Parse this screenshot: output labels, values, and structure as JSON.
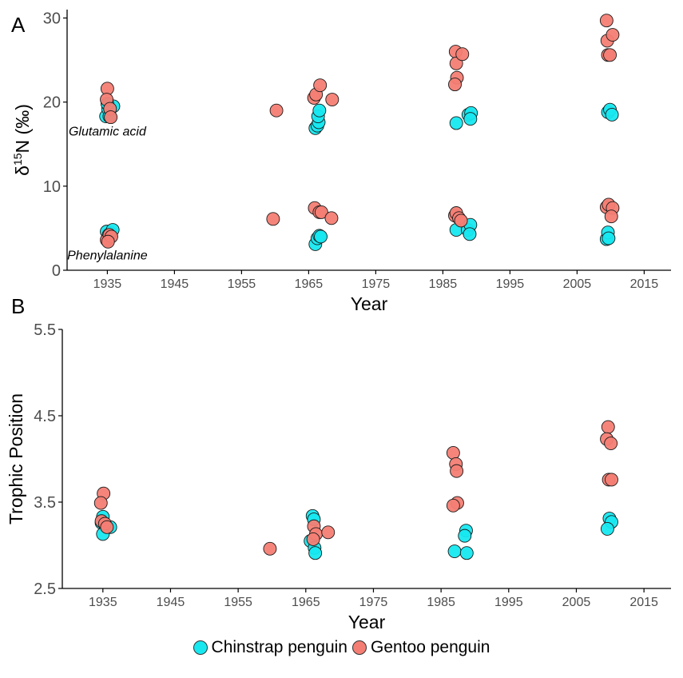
{
  "chart_data": [
    {
      "panel_label": "A",
      "type": "scatter",
      "xlabel": "Year",
      "ylabel": "δ15N (‰)",
      "ylabel_parts": {
        "symbol": "δ",
        "superscript": "15",
        "rest": "N (‰)"
      },
      "xlim": [
        1929,
        2019
      ],
      "ylim": [
        0,
        31
      ],
      "x_ticks": [
        1935,
        1945,
        1955,
        1965,
        1975,
        1985,
        1995,
        2005,
        2015
      ],
      "y_ticks": [
        0,
        10,
        20,
        30
      ],
      "grid": false,
      "annotations": [
        {
          "text": "Glutamic acid",
          "x": 1935,
          "y": 16
        },
        {
          "text": "Phenylalanine",
          "x": 1935,
          "y": 1.3
        }
      ],
      "series": [
        {
          "name": "Chinstrap penguin",
          "color": "#17e8f0",
          "points": [
            [
              1934.8,
              18.3
            ],
            [
              1935.1,
              19.2
            ],
            [
              1935.3,
              18.3
            ],
            [
              1935.9,
              19.5
            ],
            [
              1935.0,
              19.8
            ],
            [
              1966.0,
              16.9
            ],
            [
              1966.3,
              17.2
            ],
            [
              1966.5,
              17.6
            ],
            [
              1966.4,
              18.3
            ],
            [
              1966.6,
              19.0
            ],
            [
              1987.0,
              17.5
            ],
            [
              1988.8,
              18.5
            ],
            [
              1989.2,
              18.7
            ],
            [
              1989.1,
              18.0
            ],
            [
              2009.6,
              18.8
            ],
            [
              2009.9,
              19.1
            ],
            [
              2010.2,
              18.5
            ],
            [
              1934.9,
              4.6
            ],
            [
              1935.2,
              4.2
            ],
            [
              1935.5,
              4.4
            ],
            [
              1935.8,
              4.8
            ],
            [
              1966.0,
              3.1
            ],
            [
              1966.3,
              3.8
            ],
            [
              1966.6,
              4.1
            ],
            [
              1966.8,
              4.0
            ],
            [
              1987.0,
              4.8
            ],
            [
              1988.7,
              4.8
            ],
            [
              1989.1,
              5.4
            ],
            [
              1989.0,
              4.3
            ],
            [
              2009.4,
              3.7
            ],
            [
              2009.6,
              4.5
            ],
            [
              2009.7,
              3.8
            ]
          ]
        },
        {
          "name": "Gentoo penguin",
          "color": "#f47e74",
          "points": [
            [
              1935.0,
              21.6
            ],
            [
              1934.9,
              20.3
            ],
            [
              1935.4,
              19.2
            ],
            [
              1935.5,
              18.2
            ],
            [
              1960.2,
              19.0
            ],
            [
              1965.8,
              20.5
            ],
            [
              1966.1,
              20.9
            ],
            [
              1966.7,
              22.0
            ],
            [
              1968.5,
              20.3
            ],
            [
              1986.9,
              26.0
            ],
            [
              1987.0,
              24.6
            ],
            [
              1987.1,
              22.9
            ],
            [
              1986.8,
              22.1
            ],
            [
              1987.9,
              25.7
            ],
            [
              2009.4,
              29.7
            ],
            [
              2009.5,
              27.3
            ],
            [
              2010.3,
              28.0
            ],
            [
              2009.6,
              25.6
            ],
            [
              2009.9,
              25.6
            ],
            [
              1934.9,
              3.6
            ],
            [
              1935.3,
              4.2
            ],
            [
              1935.6,
              4.0
            ],
            [
              1935.1,
              3.4
            ],
            [
              1959.7,
              6.1
            ],
            [
              1965.9,
              7.4
            ],
            [
              1966.6,
              6.9
            ],
            [
              1966.9,
              6.9
            ],
            [
              1968.4,
              6.2
            ],
            [
              1986.8,
              6.5
            ],
            [
              1987.0,
              6.8
            ],
            [
              1987.4,
              6.2
            ],
            [
              1987.7,
              5.9
            ],
            [
              2009.4,
              7.5
            ],
            [
              2009.7,
              7.8
            ],
            [
              2010.3,
              7.4
            ],
            [
              2010.1,
              6.4
            ]
          ]
        }
      ]
    },
    {
      "panel_label": "B",
      "type": "scatter",
      "xlabel": "Year",
      "ylabel": "Trophic Position",
      "xlim": [
        1929,
        2019
      ],
      "ylim": [
        2.5,
        5.5
      ],
      "x_ticks": [
        1935,
        1945,
        1955,
        1965,
        1975,
        1985,
        1995,
        2005,
        2015
      ],
      "y_ticks": [
        2.5,
        3.5,
        4.5,
        5.5
      ],
      "grid": false,
      "series": [
        {
          "name": "Chinstrap penguin",
          "color": "#17e8f0",
          "points": [
            [
              1935.0,
              3.33
            ],
            [
              1934.8,
              3.26
            ],
            [
              1935.4,
              3.22
            ],
            [
              1936.1,
              3.21
            ],
            [
              1935.0,
              3.13
            ],
            [
              1966.0,
              3.34
            ],
            [
              1966.2,
              3.3
            ],
            [
              1965.7,
              3.05
            ],
            [
              1966.3,
              2.97
            ],
            [
              1966.4,
              2.91
            ],
            [
              1987.0,
              2.93
            ],
            [
              1988.7,
              3.17
            ],
            [
              1988.5,
              3.11
            ],
            [
              1988.8,
              2.91
            ],
            [
              2009.9,
              3.31
            ],
            [
              2010.2,
              3.27
            ],
            [
              2009.6,
              3.19
            ]
          ]
        },
        {
          "name": "Gentoo penguin",
          "color": "#f47e74",
          "points": [
            [
              1935.1,
              3.6
            ],
            [
              1934.7,
              3.49
            ],
            [
              1934.8,
              3.28
            ],
            [
              1935.3,
              3.25
            ],
            [
              1935.6,
              3.21
            ],
            [
              1959.7,
              2.96
            ],
            [
              1966.2,
              3.22
            ],
            [
              1966.5,
              3.13
            ],
            [
              1966.1,
              3.07
            ],
            [
              1968.3,
              3.15
            ],
            [
              1986.8,
              4.07
            ],
            [
              1987.2,
              3.94
            ],
            [
              1987.3,
              3.86
            ],
            [
              1987.4,
              3.49
            ],
            [
              1986.8,
              3.46
            ],
            [
              2009.7,
              4.37
            ],
            [
              2009.5,
              4.23
            ],
            [
              2010.1,
              4.18
            ],
            [
              2009.8,
              3.76
            ],
            [
              2010.2,
              3.76
            ]
          ]
        }
      ]
    }
  ],
  "legend": {
    "position": "bottom",
    "items": [
      {
        "label": "Chinstrap penguin",
        "color": "#17e8f0"
      },
      {
        "label": "Gentoo penguin",
        "color": "#f47e74"
      }
    ]
  }
}
